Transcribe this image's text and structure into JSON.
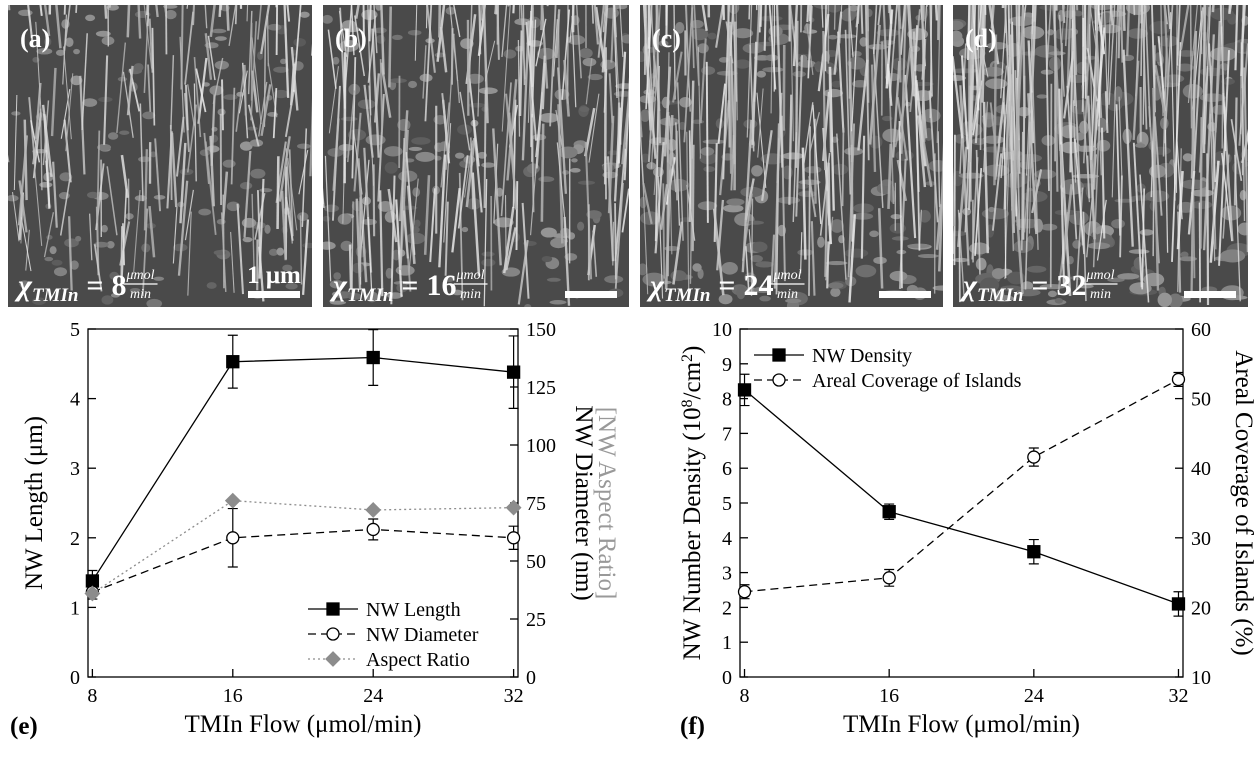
{
  "panels": [
    {
      "label": "(a)",
      "formula": {
        "symbol": "χ",
        "subscript": "TMIn",
        "equals": "=",
        "value": 8,
        "numerator": "μmol",
        "denominator": "min"
      },
      "scale_bar": "1 μm"
    },
    {
      "label": "(b)",
      "formula": {
        "symbol": "χ",
        "subscript": "TMIn",
        "equals": "=",
        "value": 16,
        "numerator": "μmol",
        "denominator": "min"
      }
    },
    {
      "label": "(c)",
      "formula": {
        "symbol": "χ",
        "subscript": "TMIn",
        "equals": "=",
        "value": 24,
        "numerator": "μmol",
        "denominator": "min"
      }
    },
    {
      "label": "(d)",
      "formula": {
        "symbol": "χ",
        "subscript": "TMIn",
        "equals": "=",
        "value": 32,
        "numerator": "μmol",
        "denominator": "min"
      }
    }
  ],
  "chart_data": [
    {
      "type": "line",
      "panel_label": "(e)",
      "xlabel": "TMIn Flow (μmol/min)",
      "ylabel": "NW Length (μm)",
      "y2label": "NW Diameter (nm)",
      "y2label_secondary": "[NW Aspect Ratio]",
      "y2label_secondary_color": "#999999",
      "x": [
        8,
        16,
        24,
        32
      ],
      "xlim": [
        7.75,
        32.25
      ],
      "xticks": [
        8,
        16,
        24,
        32
      ],
      "ylim": [
        0,
        5
      ],
      "yticks": [
        0,
        1,
        2,
        3,
        4,
        5
      ],
      "y2lim": [
        0,
        150
      ],
      "y2ticks": [
        0,
        25,
        50,
        75,
        100,
        125,
        150
      ],
      "legend": "lower right",
      "series": [
        {
          "name": "NW Length",
          "color": "#000000",
          "marker": "square",
          "marker_fill": "#000000",
          "line_style": "solid",
          "values": [
            1.38,
            4.53,
            4.59,
            4.38
          ],
          "errors": [
            0.15,
            0.38,
            0.4,
            0.52
          ]
        },
        {
          "name": "NW Diameter",
          "color": "#000000",
          "marker": "circle",
          "marker_fill": "#ffffff",
          "line_style": "dashed",
          "axis": "y2",
          "values": [
            36.6,
            60,
            63.6,
            60
          ],
          "errors": [
            3,
            12.6,
            4.5,
            5
          ]
        },
        {
          "name": "Aspect Ratio",
          "color": "#8c8c8c",
          "marker": "diamond",
          "marker_fill": "#8c8c8c",
          "line_style": "dotted",
          "axis": "y2",
          "values": [
            36,
            76,
            72,
            73
          ]
        }
      ]
    },
    {
      "type": "line",
      "panel_label": "(f)",
      "xlabel": "TMIn Flow (μmol/min)",
      "ylabel": [
        "NW Number Density (10",
        "8",
        "/cm",
        "2",
        ")"
      ],
      "y2label": "Areal Coverage of Islands (%)",
      "x": [
        8,
        16,
        24,
        32
      ],
      "xlim": [
        7.75,
        32.25
      ],
      "xticks": [
        8,
        16,
        24,
        32
      ],
      "ylim": [
        0,
        10
      ],
      "yticks": [
        0,
        1,
        2,
        3,
        4,
        5,
        6,
        7,
        8,
        9,
        10
      ],
      "y2lim": [
        10,
        60
      ],
      "y2ticks": [
        10,
        20,
        30,
        40,
        50,
        60
      ],
      "legend": "upper left",
      "series": [
        {
          "name": "NW Density",
          "color": "#000000",
          "marker": "square",
          "marker_fill": "#000000",
          "line_style": "solid",
          "values": [
            8.25,
            4.75,
            3.6,
            2.1
          ],
          "errors": [
            0.45,
            0.22,
            0.35,
            0.35
          ]
        },
        {
          "name": "Areal Coverage of Islands",
          "color": "#000000",
          "marker": "circle",
          "marker_fill": "#ffffff",
          "line_style": "dashed",
          "axis": "y2",
          "values": [
            22.25,
            24.25,
            41.6,
            52.75
          ],
          "errors": [
            1,
            1.2,
            1.3,
            1
          ]
        }
      ]
    }
  ]
}
